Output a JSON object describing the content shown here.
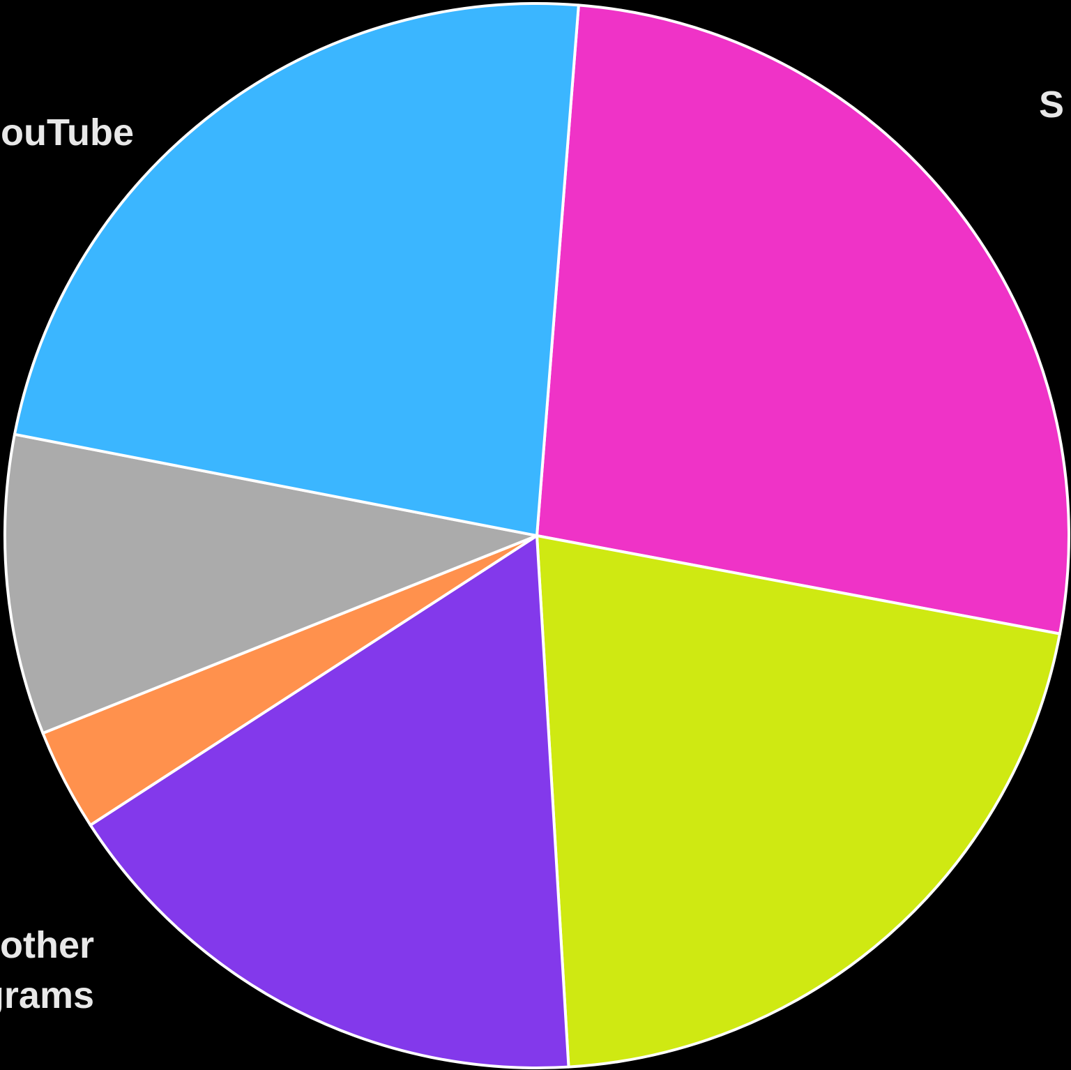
{
  "chart_data": {
    "type": "pie",
    "start_angle_deg": 85.5,
    "direction": "clockwise",
    "slices": [
      {
        "label": "S",
        "value": 26.7,
        "color": "#EF33C7"
      },
      {
        "label": "",
        "value": 21.1,
        "color": "#CFE912"
      },
      {
        "label": "",
        "value": 16.8,
        "color": "#8339EB"
      },
      {
        "label": "",
        "value": 3.1,
        "color": "#FF914D"
      },
      {
        "label": "other\ngrams",
        "value": 9.1,
        "color": "#ABABAB"
      },
      {
        "label": "ouTube",
        "value": 23.2,
        "color": "#3BB6FF"
      }
    ]
  }
}
